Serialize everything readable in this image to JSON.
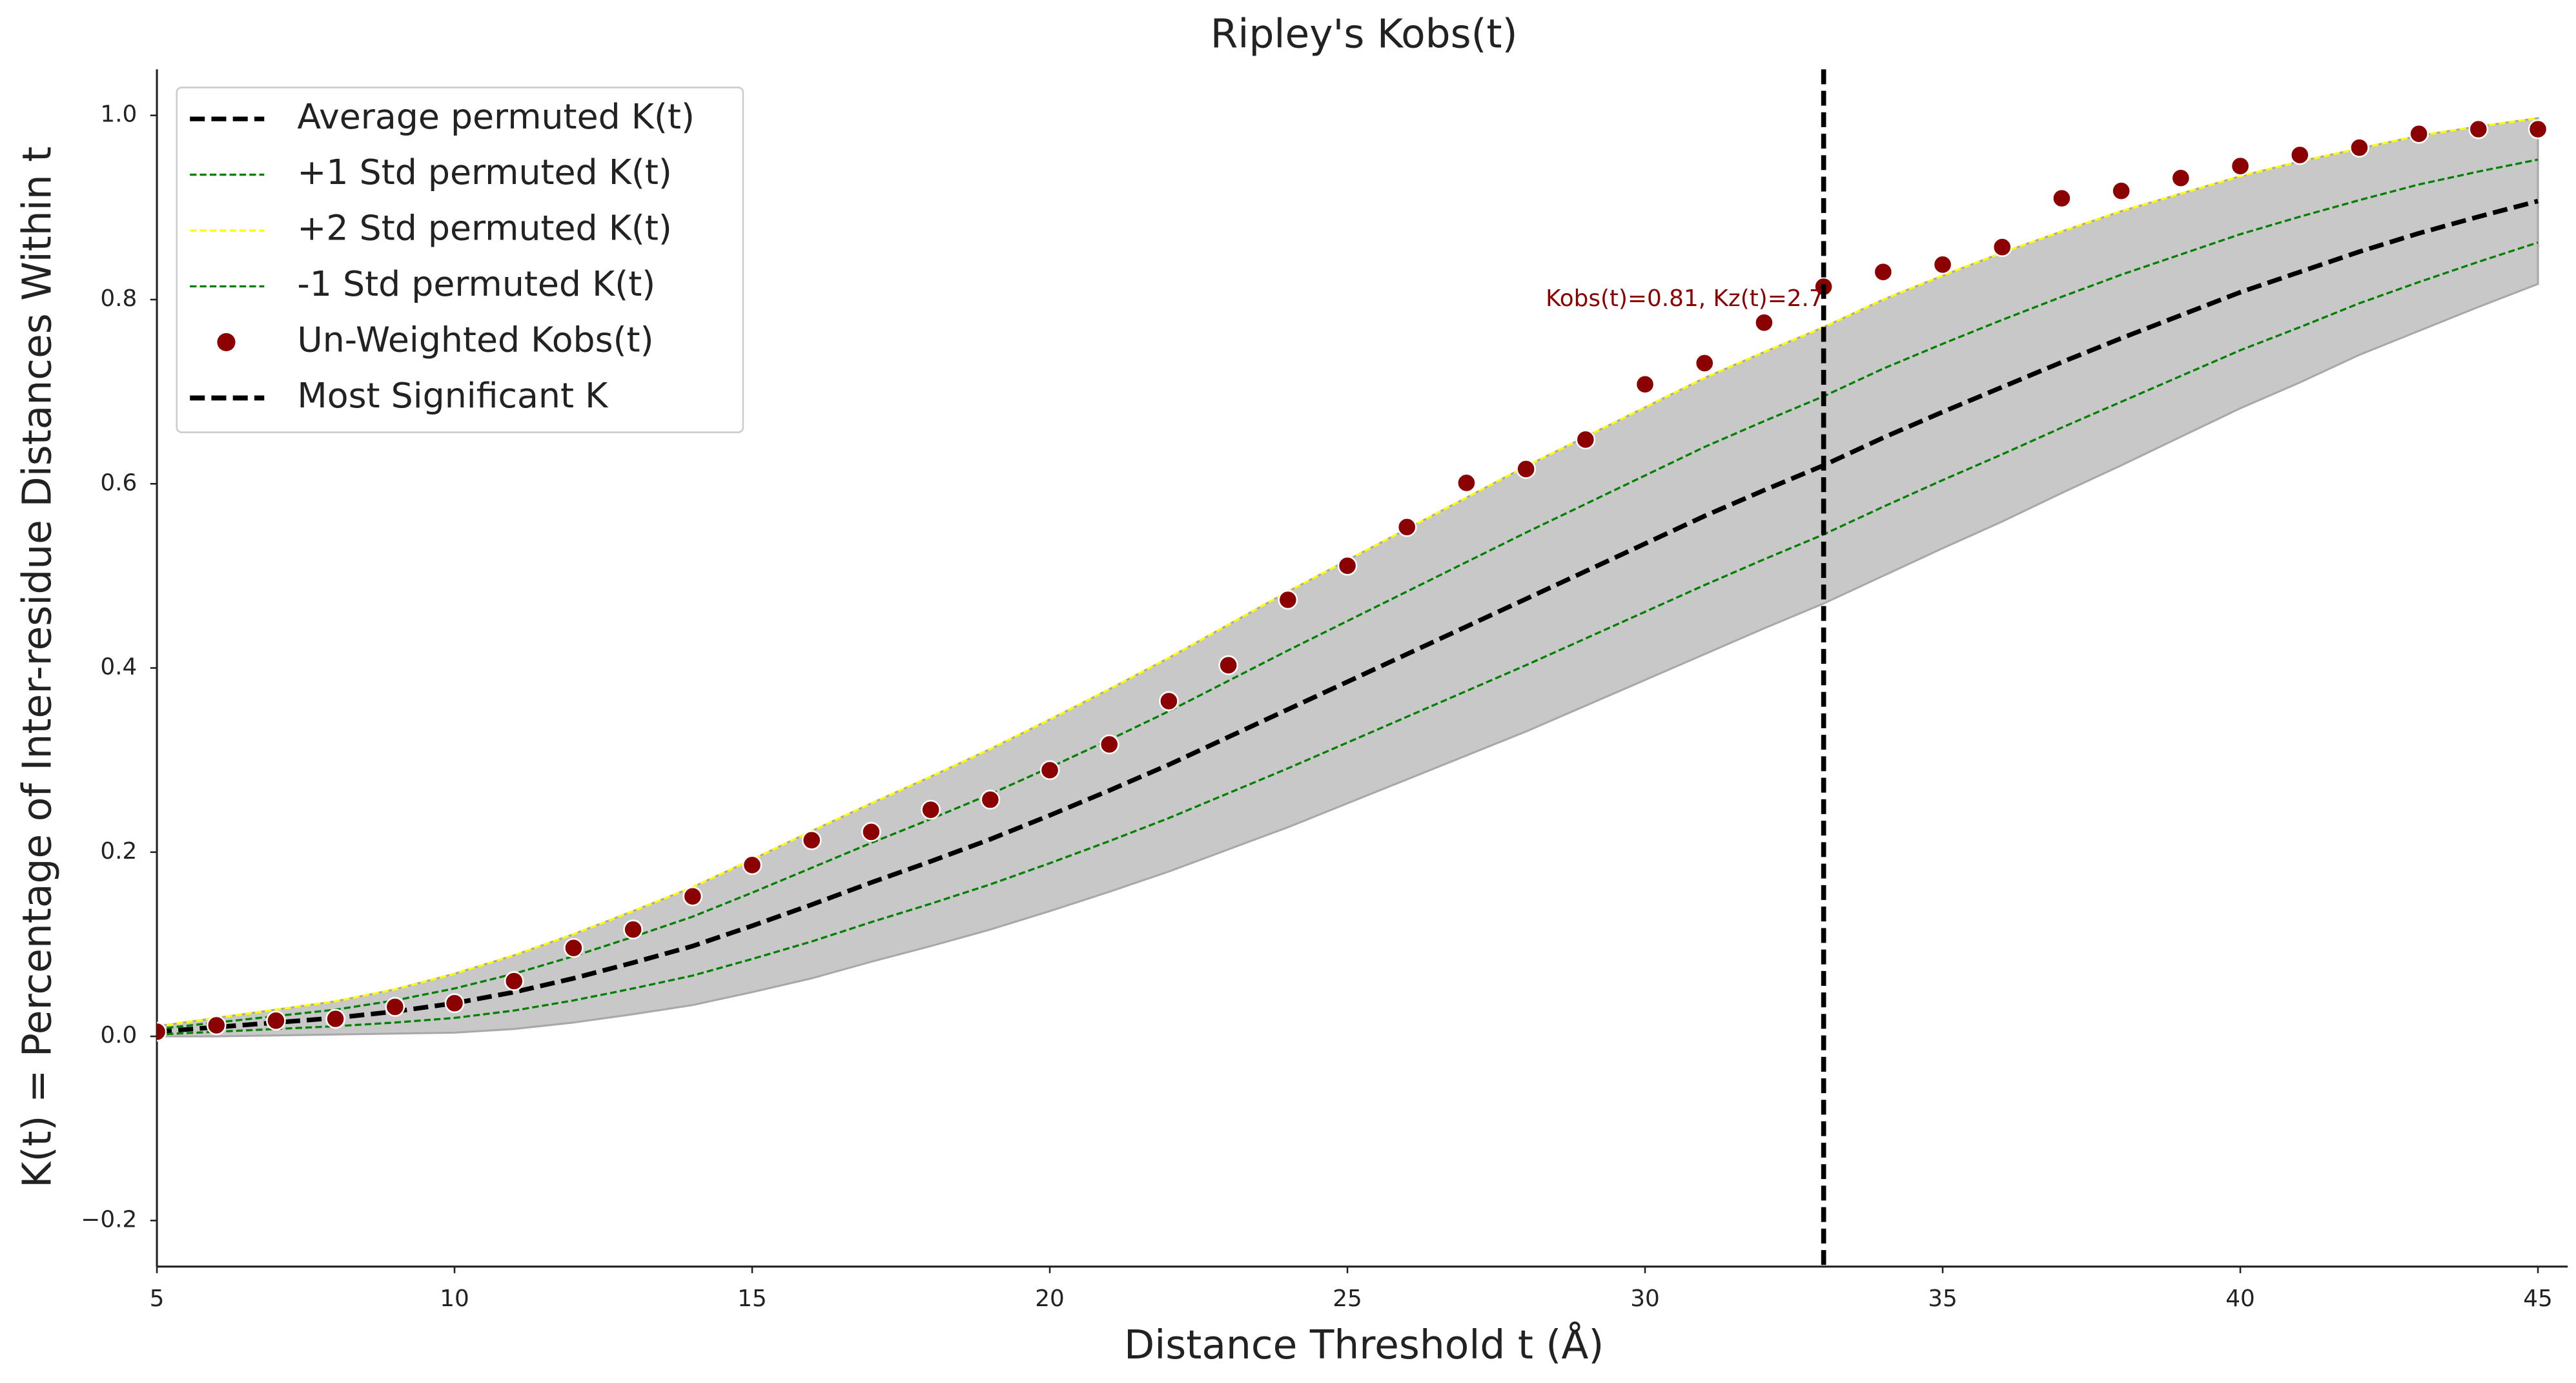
{
  "chart_data": {
    "type": "line",
    "title": "Ripley's Kobs(t)",
    "xlabel": "Distance Threshold t (Å)",
    "ylabel": "K(t) = Percentage of Inter-residue Distances Within t",
    "x": [
      5,
      6,
      7,
      8,
      9,
      10,
      11,
      12,
      13,
      14,
      15,
      16,
      17,
      18,
      19,
      20,
      21,
      22,
      23,
      24,
      25,
      26,
      27,
      28,
      29,
      30,
      31,
      32,
      33,
      34,
      35,
      36,
      37,
      38,
      39,
      40,
      41,
      42,
      43,
      44,
      45
    ],
    "xlim": [
      5,
      45.5
    ],
    "ylim": [
      -0.25,
      1.05
    ],
    "xticks": [
      5,
      10,
      15,
      20,
      25,
      30,
      35,
      40,
      45
    ],
    "yticks": [
      {
        "value": -0.2,
        "label": "−0.2"
      },
      {
        "value": 0.0,
        "label": "0.0"
      },
      {
        "value": 0.2,
        "label": "0.2"
      },
      {
        "value": 0.4,
        "label": "0.4"
      },
      {
        "value": 0.6,
        "label": "0.6"
      },
      {
        "value": 0.8,
        "label": "0.8"
      },
      {
        "value": 1.0,
        "label": "1.0"
      }
    ],
    "grid": false,
    "legend": "upper left",
    "band": {
      "color": "#c8c8c8",
      "lower": [
        0,
        0,
        0.001,
        0.002,
        0.003,
        0.004,
        0.008,
        0.015,
        0.024,
        0.034,
        0.048,
        0.063,
        0.081,
        0.098,
        0.116,
        0.136,
        0.157,
        0.179,
        0.203,
        0.227,
        0.253,
        0.279,
        0.305,
        0.331,
        0.359,
        0.387,
        0.415,
        0.443,
        0.47,
        0.5,
        0.53,
        0.559,
        0.59,
        0.62,
        0.651,
        0.682,
        0.71,
        0.74,
        0.766,
        0.792,
        0.817
      ],
      "upper": [
        0.011,
        0.02,
        0.029,
        0.038,
        0.051,
        0.068,
        0.088,
        0.111,
        0.136,
        0.162,
        0.192,
        0.223,
        0.253,
        0.282,
        0.312,
        0.344,
        0.377,
        0.411,
        0.447,
        0.483,
        0.517,
        0.551,
        0.585,
        0.619,
        0.651,
        0.683,
        0.715,
        0.743,
        0.77,
        0.8,
        0.826,
        0.851,
        0.874,
        0.896,
        0.915,
        0.934,
        0.95,
        0.964,
        0.978,
        0.988,
        0.997
      ]
    },
    "series": [
      {
        "name": "Average permuted K(t)",
        "type": "line",
        "color": "#000000",
        "width": 2.8,
        "dash": "9 4",
        "values": [
          0.005,
          0.01,
          0.015,
          0.02,
          0.027,
          0.036,
          0.048,
          0.063,
          0.08,
          0.098,
          0.12,
          0.143,
          0.167,
          0.19,
          0.214,
          0.24,
          0.267,
          0.295,
          0.325,
          0.355,
          0.385,
          0.415,
          0.445,
          0.475,
          0.505,
          0.535,
          0.565,
          0.593,
          0.62,
          0.65,
          0.678,
          0.705,
          0.732,
          0.758,
          0.783,
          0.808,
          0.83,
          0.852,
          0.872,
          0.89,
          0.907
        ]
      },
      {
        "name": "+1 Std permuted K(t)",
        "type": "line",
        "color": "#008000",
        "width": 1.3,
        "dash": "4 2",
        "values": [
          0.008,
          0.015,
          0.022,
          0.029,
          0.039,
          0.052,
          0.068,
          0.087,
          0.108,
          0.13,
          0.156,
          0.183,
          0.21,
          0.236,
          0.263,
          0.292,
          0.322,
          0.353,
          0.386,
          0.419,
          0.451,
          0.483,
          0.515,
          0.547,
          0.578,
          0.609,
          0.64,
          0.668,
          0.695,
          0.725,
          0.752,
          0.778,
          0.803,
          0.827,
          0.849,
          0.871,
          0.89,
          0.908,
          0.925,
          0.939,
          0.952
        ]
      },
      {
        "name": "+2 Std permuted K(t)",
        "type": "line",
        "color": "#ffff00",
        "width": 1.3,
        "dash": "4 2",
        "values": [
          0.011,
          0.02,
          0.029,
          0.038,
          0.051,
          0.068,
          0.088,
          0.111,
          0.136,
          0.162,
          0.192,
          0.223,
          0.253,
          0.282,
          0.312,
          0.344,
          0.377,
          0.411,
          0.447,
          0.483,
          0.517,
          0.551,
          0.585,
          0.619,
          0.651,
          0.683,
          0.715,
          0.743,
          0.77,
          0.8,
          0.826,
          0.851,
          0.874,
          0.896,
          0.915,
          0.934,
          0.95,
          0.964,
          0.978,
          0.988,
          0.997
        ]
      },
      {
        "name": "-1 Std permuted K(t)",
        "type": "line",
        "color": "#008000",
        "width": 1.3,
        "dash": "4 2",
        "values": [
          0.002,
          0.005,
          0.008,
          0.011,
          0.015,
          0.02,
          0.028,
          0.039,
          0.052,
          0.066,
          0.084,
          0.103,
          0.124,
          0.144,
          0.165,
          0.188,
          0.212,
          0.237,
          0.264,
          0.291,
          0.319,
          0.347,
          0.375,
          0.403,
          0.432,
          0.461,
          0.49,
          0.518,
          0.545,
          0.575,
          0.604,
          0.632,
          0.661,
          0.689,
          0.717,
          0.745,
          0.77,
          0.796,
          0.819,
          0.841,
          0.862
        ]
      },
      {
        "name": "Un-Weighted Kobs(t)",
        "type": "scatter",
        "color": "#8b0000",
        "values": [
          0.005,
          0.012,
          0.017,
          0.019,
          0.032,
          0.036,
          0.06,
          0.096,
          0.116,
          0.152,
          0.186,
          0.213,
          0.222,
          0.246,
          0.257,
          0.289,
          0.317,
          0.364,
          0.403,
          0.474,
          0.511,
          0.553,
          0.601,
          0.616,
          0.648,
          0.708,
          0.731,
          0.775,
          0.814,
          0.83,
          0.838,
          0.857,
          0.91,
          0.918,
          0.932,
          0.945,
          0.957,
          0.965,
          0.98,
          0.985,
          0.985
        ]
      }
    ],
    "vline": {
      "name": "Most Significant K",
      "x": 33,
      "color": "#000000"
    },
    "annotation": {
      "text": "Kobs(t)=0.81, Kz(t)=2.7",
      "x": 33,
      "y": 0.8,
      "color": "#8b0000"
    }
  }
}
